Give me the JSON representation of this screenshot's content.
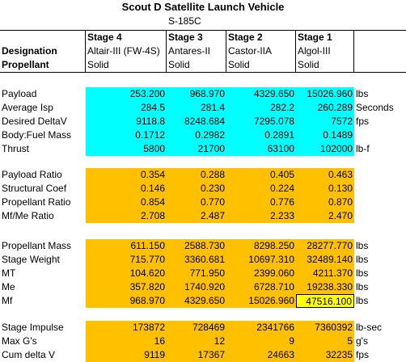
{
  "title": "Scout D Satellite Launch Vehicle",
  "model": "S-185C",
  "header": {
    "designation_label": "Designation",
    "propellant_label": "Propellant",
    "stages": [
      "Stage 4",
      "Stage 3",
      "Stage 2",
      "Stage 1"
    ],
    "designations": [
      "Altair-III (FW-4S)",
      "Antares-II",
      "Castor-IIA",
      "Algol-III"
    ],
    "propellants": [
      "Solid",
      "Solid",
      "Solid",
      "Solid"
    ]
  },
  "sections": [
    {
      "color": "#00ffff",
      "rows": [
        {
          "label": "Payload",
          "values": [
            "253.200",
            "968.970",
            "4329.650",
            "15026.960"
          ],
          "unit": "lbs"
        },
        {
          "label": "Average Isp",
          "values": [
            "284.5",
            "281.4",
            "282.2",
            "260.289"
          ],
          "unit": "Seconds"
        },
        {
          "label": "Desired DeltaV",
          "values": [
            "9118.8",
            "8248.684",
            "7295.078",
            "7572"
          ],
          "unit": "fps"
        },
        {
          "label": "Body:Fuel Mass",
          "values": [
            "0.1712",
            "0.2982",
            "0.2891",
            "0.1489"
          ],
          "unit": ""
        },
        {
          "label": "Thrust",
          "values": [
            "5800",
            "21700",
            "63100",
            "102000"
          ],
          "unit": "lb-f"
        }
      ]
    },
    {
      "color": "#ffc000",
      "rows": [
        {
          "label": "Payload Ratio",
          "values": [
            "0.354",
            "0.288",
            "0.405",
            "0.463"
          ],
          "unit": ""
        },
        {
          "label": "Structural Coef",
          "values": [
            "0.146",
            "0.230",
            "0.224",
            "0.130"
          ],
          "unit": ""
        },
        {
          "label": "Propellant Ratio",
          "values": [
            "0.854",
            "0.770",
            "0.776",
            "0.870"
          ],
          "unit": ""
        },
        {
          "label": "Mf/Me Ratio",
          "values": [
            "2.708",
            "2.487",
            "2.233",
            "2.470"
          ],
          "unit": ""
        }
      ]
    },
    {
      "color": "#ffc000",
      "rows": [
        {
          "label": "Propellant Mass",
          "values": [
            "611.150",
            "2588.730",
            "8298.250",
            "28277.770"
          ],
          "unit": "lbs"
        },
        {
          "label": "Stage Weight",
          "values": [
            "715.770",
            "3360.681",
            "10697.310",
            "32489.140"
          ],
          "unit": "lbs"
        },
        {
          "label": "MT",
          "values": [
            "104.620",
            "771.950",
            "2399.060",
            "4211.370"
          ],
          "unit": "lbs"
        },
        {
          "label": "Me",
          "values": [
            "357.820",
            "1740.920",
            "6728.710",
            "19238.330"
          ],
          "unit": "lbs"
        },
        {
          "label": "Mf",
          "values": [
            "968.970",
            "4329.650",
            "15026.960",
            "47516.100"
          ],
          "unit": "lbs"
        }
      ]
    },
    {
      "color": "#ffc000",
      "rows": [
        {
          "label": "Stage Impulse",
          "values": [
            "173872",
            "728469",
            "2341766",
            "7360392"
          ],
          "unit": "lb-sec"
        },
        {
          "label": "Max G's",
          "values": [
            "16",
            "12",
            "9",
            "5"
          ],
          "unit": "g's"
        },
        {
          "label": "Cum delta V",
          "values": [
            "9119",
            "17367",
            "24663",
            "32235"
          ],
          "unit": "fps"
        }
      ]
    }
  ],
  "selected_cell": "47516.100"
}
